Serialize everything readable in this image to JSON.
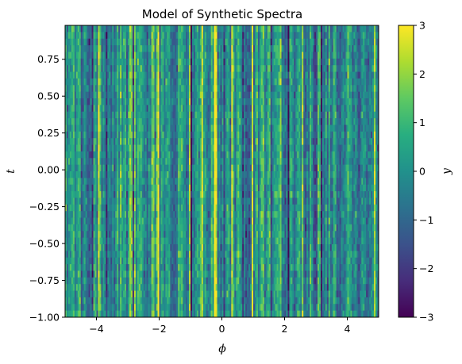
{
  "chart_data": {
    "type": "heatmap",
    "title": "Model of Synthetic Spectra",
    "xlabel": "ϕ",
    "ylabel": "t",
    "xlim": [
      -5,
      5
    ],
    "ylim": [
      -1,
      0.98
    ],
    "x_ticks": [
      -4,
      -2,
      0,
      2,
      4
    ],
    "x_tick_labels": [
      "−4",
      "−2",
      "0",
      "2",
      "4"
    ],
    "y_ticks": [
      -1.0,
      -0.75,
      -0.5,
      -0.25,
      0.0,
      0.25,
      0.5,
      0.75
    ],
    "y_tick_labels": [
      "−1.00",
      "−0.75",
      "−0.50",
      "−0.25",
      "0.00",
      "0.25",
      "0.50",
      "0.75"
    ],
    "colormap": "viridis",
    "colorbar": {
      "label": "y",
      "range": [
        -3,
        3
      ],
      "ticks": [
        -3,
        -2,
        -1,
        0,
        1,
        2,
        3
      ],
      "tick_labels": [
        "−3",
        "−2",
        "−1",
        "0",
        "1",
        "2",
        "3"
      ]
    },
    "grid": false,
    "description_of_values": "y is noise-like, mostly between -1 and 1, with vertical streak structure along phi and occasional peaks near 3"
  }
}
